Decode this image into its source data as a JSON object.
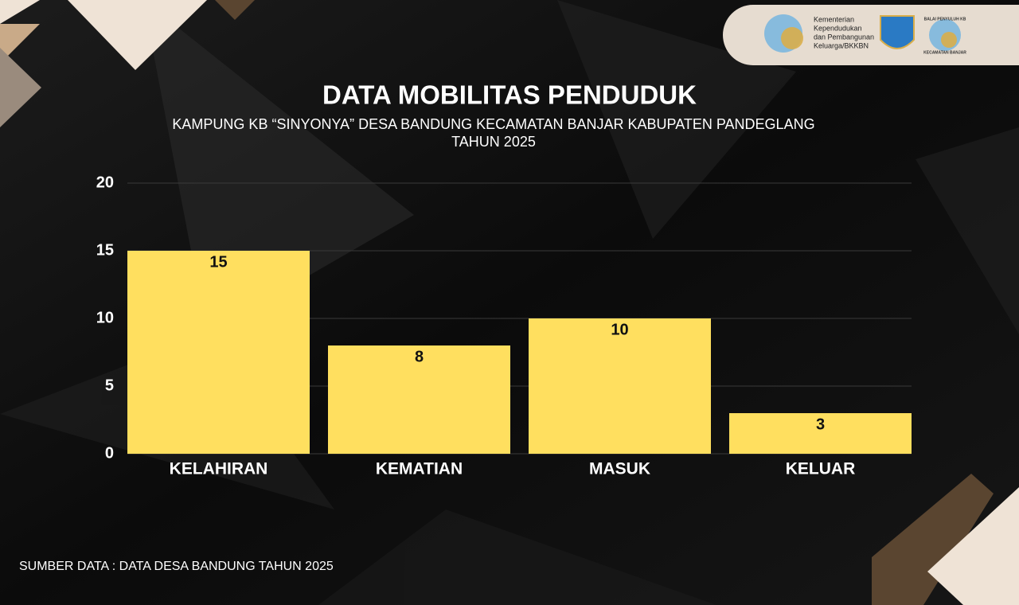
{
  "chart_data": {
    "type": "bar",
    "title": "DATA MOBILITAS PENDUDUK",
    "subtitle": [
      "KAMPUNG KB “SINYONYA” DESA BANDUNG KECAMATAN BANJAR KABUPATEN PANDEGLANG",
      "TAHUN 2025"
    ],
    "categories": [
      "KELAHIRAN",
      "KEMATIAN",
      "MASUK",
      "KELUAR"
    ],
    "values": [
      15,
      8,
      10,
      3
    ],
    "color": "#ffdf5f",
    "ylim": [
      0,
      20
    ],
    "yticks": [
      0,
      5,
      10,
      15,
      20
    ],
    "grid": true,
    "source": "SUMBER DATA : DATA DESA BANDUNG TAHUN 2025"
  },
  "logos": {
    "ministry": [
      "Kementerian",
      "Kependudukan",
      "dan Pembangunan",
      "Keluarga/BKKBN"
    ],
    "balai": [
      "BALAI PENYULUH KB",
      "KECAMATAN BANJAR"
    ]
  }
}
